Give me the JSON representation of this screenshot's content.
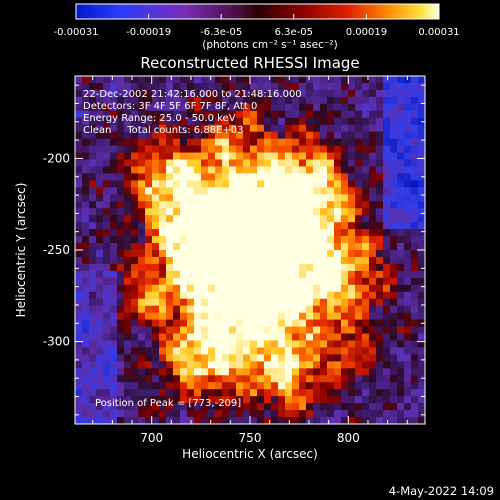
{
  "chart_data": {
    "type": "heatmap",
    "title": "Reconstructed RHESSI Image",
    "xlabel": "Heliocentric X (arcsec)",
    "ylabel": "Heliocentric Y (arcsec)",
    "xlim": [
      661,
      839
    ],
    "ylim": [
      -345,
      -155
    ],
    "xticks": [
      700,
      750,
      800
    ],
    "yticks": [
      -200,
      -250,
      -300
    ],
    "colorbar": {
      "ticks": [
        "-0.00031",
        "-0.00019",
        "-6.3e-05",
        "6.3e-05",
        "0.00019",
        "0.00031"
      ],
      "range": [
        -0.00031,
        0.00031
      ],
      "unit_label": "(photons cm⁻² s⁻¹ asec⁻²)"
    },
    "annotations": {
      "time": "22-Dec-2002 21:42:16.000 to 21:48:16.000",
      "detectors": "Detectors: 3F 4F 5F 6F 7F 8F, Att 0",
      "energy": "Energy Range: 25.0 - 50.0 keV",
      "clean": "Clean     Total counts: 6.88E+03",
      "peak": "Position of Peak = [773,-209]"
    },
    "peak_position": [
      773,
      -209
    ]
  },
  "footer": {
    "date": "4-May-2022 14:09"
  }
}
